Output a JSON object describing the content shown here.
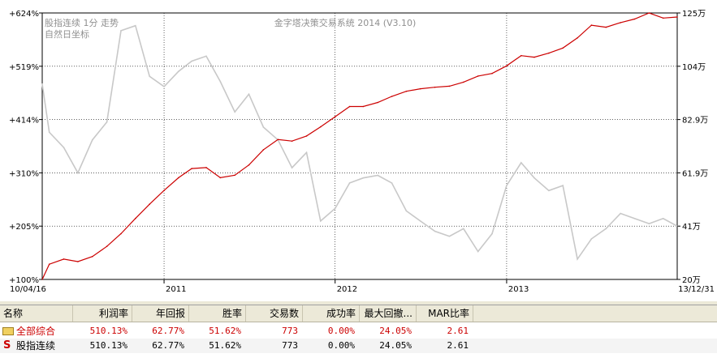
{
  "chart_data": {
    "type": "line",
    "title": "金字塔决策交易系统 2014 (V3.10)",
    "label_line1": "股指连续 1分 走势",
    "label_line2": "自然日坐标",
    "x_start": "10/04/16",
    "x_end": "13/12/31",
    "x_ticks": [
      {
        "date": "2011-01-01",
        "label": "2011"
      },
      {
        "date": "2012-01-01",
        "label": "2012"
      },
      {
        "date": "2013-01-01",
        "label": "2013"
      }
    ],
    "xlim": [
      "2010-04-16",
      "2013-12-31"
    ],
    "left_axis": {
      "ticks": [
        "+624%",
        "+519%",
        "+414%",
        "+310%",
        "+205%",
        "+100%"
      ],
      "ylim": [
        100,
        624
      ]
    },
    "right_axis": {
      "ticks": [
        "125万",
        "104万",
        "82.9万",
        "61.9万",
        "41万",
        "20万"
      ]
    },
    "grid": true,
    "series": [
      {
        "color": "#cc0000",
        "axis": "left",
        "points": [
          [
            "2010-04-16",
            100
          ],
          [
            "2010-05-01",
            130
          ],
          [
            "2010-06-01",
            140
          ],
          [
            "2010-07-01",
            135
          ],
          [
            "2010-08-01",
            145
          ],
          [
            "2010-09-01",
            165
          ],
          [
            "2010-10-01",
            190
          ],
          [
            "2010-11-01",
            220
          ],
          [
            "2010-12-01",
            248
          ],
          [
            "2011-01-01",
            275
          ],
          [
            "2011-02-01",
            300
          ],
          [
            "2011-03-01",
            318
          ],
          [
            "2011-04-01",
            320
          ],
          [
            "2011-05-01",
            300
          ],
          [
            "2011-06-01",
            305
          ],
          [
            "2011-07-01",
            325
          ],
          [
            "2011-08-01",
            355
          ],
          [
            "2011-09-01",
            375
          ],
          [
            "2011-10-01",
            372
          ],
          [
            "2011-11-01",
            382
          ],
          [
            "2011-12-01",
            400
          ],
          [
            "2012-01-01",
            420
          ],
          [
            "2012-02-01",
            440
          ],
          [
            "2012-03-01",
            440
          ],
          [
            "2012-04-01",
            448
          ],
          [
            "2012-05-01",
            460
          ],
          [
            "2012-06-01",
            470
          ],
          [
            "2012-07-01",
            475
          ],
          [
            "2012-08-01",
            478
          ],
          [
            "2012-09-01",
            480
          ],
          [
            "2012-10-01",
            488
          ],
          [
            "2012-11-01",
            500
          ],
          [
            "2012-12-01",
            505
          ],
          [
            "2013-01-01",
            520
          ],
          [
            "2013-02-01",
            540
          ],
          [
            "2013-03-01",
            537
          ],
          [
            "2013-04-01",
            545
          ],
          [
            "2013-05-01",
            555
          ],
          [
            "2013-06-01",
            575
          ],
          [
            "2013-07-01",
            600
          ],
          [
            "2013-08-01",
            596
          ],
          [
            "2013-09-01",
            605
          ],
          [
            "2013-10-01",
            612
          ],
          [
            "2013-11-01",
            624
          ],
          [
            "2013-12-01",
            614
          ],
          [
            "2013-12-31",
            616
          ]
        ]
      },
      {
        "color": "#c8c8c8",
        "axis": "right",
        "points": [
          [
            "2010-04-16",
            97
          ],
          [
            "2010-05-01",
            78
          ],
          [
            "2010-06-01",
            72
          ],
          [
            "2010-07-01",
            62
          ],
          [
            "2010-08-01",
            75
          ],
          [
            "2010-09-01",
            82
          ],
          [
            "2010-10-01",
            118
          ],
          [
            "2010-11-01",
            120
          ],
          [
            "2010-12-01",
            100
          ],
          [
            "2011-01-01",
            96
          ],
          [
            "2011-02-01",
            102
          ],
          [
            "2011-03-01",
            106
          ],
          [
            "2011-04-01",
            108
          ],
          [
            "2011-05-01",
            98
          ],
          [
            "2011-06-01",
            86
          ],
          [
            "2011-07-01",
            93
          ],
          [
            "2011-08-01",
            80
          ],
          [
            "2011-09-01",
            75
          ],
          [
            "2011-10-01",
            64
          ],
          [
            "2011-11-01",
            70
          ],
          [
            "2011-12-01",
            43
          ],
          [
            "2012-01-01",
            48
          ],
          [
            "2012-02-01",
            58
          ],
          [
            "2012-03-01",
            60
          ],
          [
            "2012-04-01",
            61
          ],
          [
            "2012-05-01",
            58
          ],
          [
            "2012-06-01",
            47
          ],
          [
            "2012-07-01",
            43
          ],
          [
            "2012-08-01",
            39
          ],
          [
            "2012-09-01",
            37
          ],
          [
            "2012-10-01",
            40
          ],
          [
            "2012-11-01",
            31
          ],
          [
            "2012-12-01",
            38
          ],
          [
            "2013-01-01",
            57
          ],
          [
            "2013-02-01",
            66
          ],
          [
            "2013-03-01",
            60
          ],
          [
            "2013-04-01",
            55
          ],
          [
            "2013-05-01",
            57
          ],
          [
            "2013-06-01",
            28
          ],
          [
            "2013-07-01",
            36
          ],
          [
            "2013-08-01",
            40
          ],
          [
            "2013-09-01",
            46
          ],
          [
            "2013-10-01",
            44
          ],
          [
            "2013-11-01",
            42
          ],
          [
            "2013-12-01",
            44
          ],
          [
            "2013-12-31",
            41
          ]
        ]
      }
    ]
  },
  "table": {
    "headers": [
      "名称",
      "利润率",
      "年回报",
      "胜率",
      "交易数",
      "成功率",
      "最大回撤...",
      "MAR比率"
    ],
    "rows": [
      {
        "icon": "folder-icon",
        "name": "全部综合",
        "values": [
          "510.13%",
          "62.77%",
          "51.62%",
          "773",
          "0.00%",
          "24.05%",
          "2.61"
        ],
        "color": "#cc0000"
      },
      {
        "icon": "s-icon",
        "icon_text": "S",
        "name": "股指连续",
        "values": [
          "510.13%",
          "62.77%",
          "51.62%",
          "773",
          "0.00%",
          "24.05%",
          "2.61"
        ],
        "color": "#000000"
      }
    ]
  }
}
